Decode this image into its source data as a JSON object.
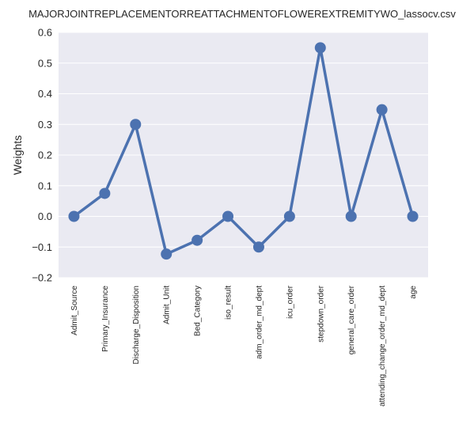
{
  "chart_data": {
    "type": "line",
    "title": "MAJORJOINTREPLACEMENTORREATTACHMENTOFLOWEREXTREMITYWO_lassocv.csv",
    "xlabel": "",
    "ylabel": "Weights",
    "categories": [
      "Admit_Source",
      "Primary_Insurance",
      "Discharge_Disposition",
      "Admit_Unit",
      "Bed_Category",
      "iso_result",
      "adm_order_md_dept",
      "icu_order",
      "stepdown_order",
      "general_care_order",
      "attending_change_order_md_dept",
      "age"
    ],
    "values": [
      0.0,
      0.075,
      0.3,
      -0.123,
      -0.078,
      0.0,
      -0.1,
      0.0,
      0.55,
      0.0,
      0.348,
      0.0
    ],
    "ylim": [
      -0.2,
      0.6
    ],
    "yticks": [
      "−0.2",
      "−0.1",
      "0.0",
      "0.1",
      "0.2",
      "0.3",
      "0.4",
      "0.5",
      "0.6"
    ],
    "grid": true,
    "colors": {
      "background": "#eaeaf2",
      "line": "#4c72b0",
      "grid": "#ffffff"
    }
  }
}
